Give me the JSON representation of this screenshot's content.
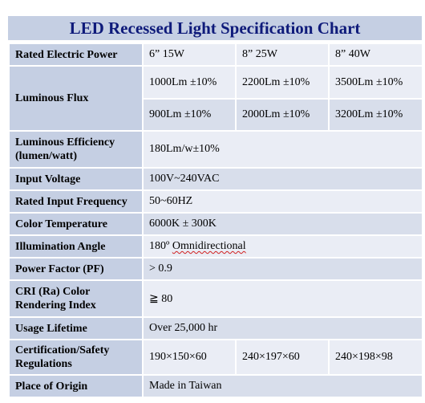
{
  "title": "LED Recessed  Light Specification Chart",
  "rows": {
    "power": {
      "label": "Rated Electric Power",
      "v1": "6” 15W",
      "v2": "8” 25W",
      "v3": "8” 40W"
    },
    "flux": {
      "label": "Luminous Flux",
      "a1": "1000Lm  ±10%",
      "a2": "2200Lm  ±10%",
      "a3": "3500Lm  ±10%",
      "b1": "900Lm  ±10%",
      "b2": "2000Lm  ±10%",
      "b3": "3200Lm  ±10%"
    },
    "efficiency": {
      "label": "Luminous Efficiency (lumen/watt)",
      "value": "180Lm/w±10%"
    },
    "voltage": {
      "label": "Input Voltage",
      "value": "100V~240VAC"
    },
    "frequency": {
      "label": "Rated Input Frequency",
      "value": "50~60HZ"
    },
    "color_temp": {
      "label": "Color Temperature",
      "value": "6000K ± 300K"
    },
    "angle": {
      "label": "Illumination Angle",
      "value_num": "180º",
      "value_word": "Omnidirectional"
    },
    "pf": {
      "label": "Power Factor (PF)",
      "value": "> 0.9"
    },
    "cri": {
      "label": "CRI (Ra) Color Rendering Index",
      "value": "≧ 80"
    },
    "lifetime": {
      "label": "Usage Lifetime",
      "value": "Over 25,000 hr"
    },
    "cert": {
      "label": "Certification/Safety Regulations",
      "v1": "190×150×60",
      "v2": "240×197×60",
      "v3": "240×198×98"
    },
    "origin": {
      "label": "Place of Origin",
      "value": "Made in Taiwan"
    }
  }
}
